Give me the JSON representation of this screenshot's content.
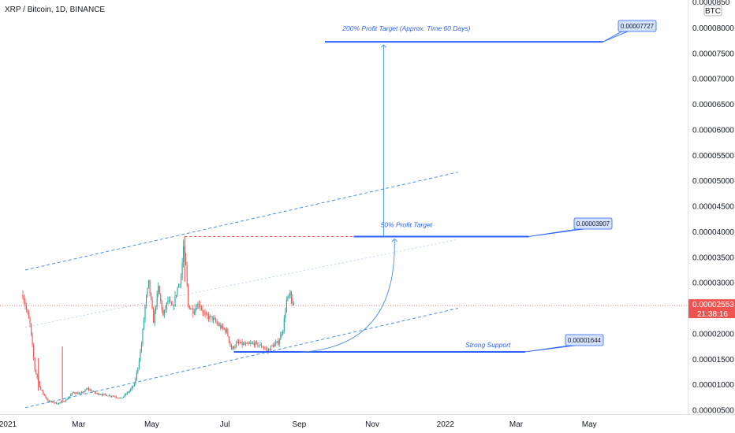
{
  "chart_data": {
    "type": "candlestick",
    "title": "XRP / Bitcoin, 1D, BINANCE",
    "currency": "BTC",
    "y_axis": {
      "ticks": [
        "0.00000500",
        "0.00001000",
        "0.00001500",
        "0.00002000",
        "0.00002500",
        "0.00003000",
        "0.00003500",
        "0.00004000",
        "0.00004500",
        "0.00005000",
        "0.00005500",
        "0.00006000",
        "0.00006500",
        "0.00007000",
        "0.00007500",
        "0.00008000",
        "0.00008500"
      ],
      "top_tick_visible": "0.0000850",
      "ylim": [
        4.5e-06,
        8.55e-05
      ]
    },
    "x_axis": {
      "ticks": [
        "2021",
        "Mar",
        "May",
        "Jul",
        "Sep",
        "Nov",
        "2022",
        "Mar",
        "May"
      ]
    },
    "current_price": {
      "value": "0.00002553",
      "countdown": "21:38:16",
      "color": "#ef5350"
    },
    "levels": [
      {
        "name": "profit-200",
        "price": 7.727e-05,
        "callout": "0.00007727",
        "label": "200% Profit Target (Approx. Time 60 Days)"
      },
      {
        "name": "profit-50",
        "price": 3.907e-05,
        "callout": "0.00003907",
        "label": "50% Profit Target"
      },
      {
        "name": "support",
        "price": 1.644e-05,
        "callout": "0.00001644",
        "label": "Strong Support"
      }
    ],
    "prior_high": 3.907e-05,
    "channel": {
      "upper": [
        [
          "2021-01-01",
          3.25e-05
        ],
        [
          "2021-12-28",
          5.17e-05
        ]
      ],
      "mid": [
        [
          "2021-01-01",
          2.13e-05
        ],
        [
          "2021-12-28",
          3.85e-05
        ]
      ],
      "lower": [
        [
          "2021-01-01",
          5.5e-06
        ],
        [
          "2021-12-28",
          2.5e-05
        ]
      ]
    },
    "price_path": [
      [
        "2020-12-30",
        2.76e-05
      ],
      [
        "2021-01-05",
        2.18e-05
      ],
      [
        "2021-01-09",
        1.3e-05
      ],
      [
        "2021-01-14",
        9e-06
      ],
      [
        "2021-01-20",
        6.8e-06
      ],
      [
        "2021-01-28",
        6.3e-06
      ],
      [
        "2021-02-04",
        7e-06
      ],
      [
        "2021-02-10",
        8.5e-06
      ],
      [
        "2021-02-16",
        8.2e-06
      ],
      [
        "2021-02-22",
        9.2e-06
      ],
      [
        "2021-03-01",
        8.3e-06
      ],
      [
        "2021-03-08",
        8e-06
      ],
      [
        "2021-03-15",
        7.8e-06
      ],
      [
        "2021-03-22",
        7.3e-06
      ],
      [
        "2021-03-29",
        8.8e-06
      ],
      [
        "2021-04-02",
        1e-05
      ],
      [
        "2021-04-05",
        1.35e-05
      ],
      [
        "2021-04-08",
        1.8e-05
      ],
      [
        "2021-04-11",
        2.55e-05
      ],
      [
        "2021-04-14",
        3e-05
      ],
      [
        "2021-04-18",
        2.25e-05
      ],
      [
        "2021-04-22",
        2.9e-05
      ],
      [
        "2021-04-26",
        2.35e-05
      ],
      [
        "2021-04-30",
        2.65e-05
      ],
      [
        "2021-05-04",
        2.5e-05
      ],
      [
        "2021-05-08",
        2.9e-05
      ],
      [
        "2021-05-11",
        3.1e-05
      ],
      [
        "2021-05-13",
        3.7e-05
      ],
      [
        "2021-05-15",
        3.3e-05
      ],
      [
        "2021-05-17",
        2.55e-05
      ],
      [
        "2021-05-21",
        2.45e-05
      ],
      [
        "2021-05-26",
        2.6e-05
      ],
      [
        "2021-05-31",
        2.35e-05
      ],
      [
        "2021-06-06",
        2.3e-05
      ],
      [
        "2021-06-12",
        2.15e-05
      ],
      [
        "2021-06-18",
        2.05e-05
      ],
      [
        "2021-06-22",
        1.7e-05
      ],
      [
        "2021-06-27",
        1.82e-05
      ],
      [
        "2021-07-04",
        1.78e-05
      ],
      [
        "2021-07-11",
        1.81e-05
      ],
      [
        "2021-07-18",
        1.75e-05
      ],
      [
        "2021-07-22",
        1.66e-05
      ],
      [
        "2021-07-26",
        1.76e-05
      ],
      [
        "2021-07-31",
        1.83e-05
      ],
      [
        "2021-08-04",
        2.1e-05
      ],
      [
        "2021-08-07",
        2.65e-05
      ],
      [
        "2021-08-10",
        2.76e-05
      ],
      [
        "2021-08-13",
        2.53e-05
      ]
    ],
    "spikes": [
      {
        "date": "2021-02-01",
        "high": 1.75e-05,
        "low": 6.4e-06
      },
      {
        "date": "2021-01-12",
        "high": 1.52e-05,
        "low": 8.8e-06
      },
      {
        "date": "2021-05-14",
        "high": 3.91e-05,
        "low": 3.02e-05
      },
      {
        "date": "2021-08-11",
        "high": 2.84e-05,
        "low": 2.58e-05
      }
    ],
    "arrows": [
      {
        "name": "curve-arrow-to-50",
        "from": [
          "2021-08-20",
          1.64e-05
        ],
        "to": [
          "2021-11-05",
          3.86e-05
        ]
      },
      {
        "name": "vertical-arrow-to-200",
        "from": [
          "2021-10-27",
          3.91e-05
        ],
        "to": [
          "2021-10-27",
          7.67e-05
        ]
      }
    ],
    "colors": {
      "up": "#26a69a",
      "down": "#ef5350",
      "level": "#2962ff",
      "channel": "#4a90e2",
      "high_line": "#ef5350"
    }
  }
}
